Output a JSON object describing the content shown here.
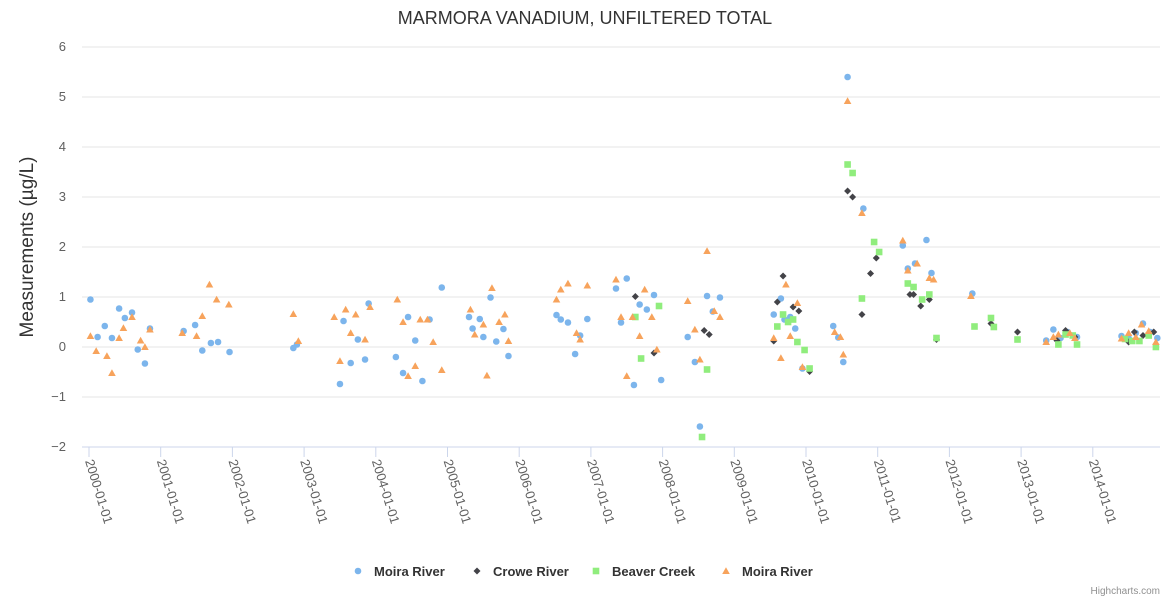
{
  "chart_data": {
    "type": "scatter",
    "title": "MARMORA VANADIUM, UNFILTERED TOTAL",
    "xlabel": "",
    "ylabel": "Measurements (µg/L)",
    "ylim": [
      -2,
      6
    ],
    "yticks": [
      -2,
      -1,
      0,
      1,
      2,
      3,
      4,
      5,
      6
    ],
    "xlim": [
      2000.0,
      2014.95
    ],
    "xticks": [
      {
        "value": 2000,
        "label": "2000-01-01"
      },
      {
        "value": 2001,
        "label": "2001-01-01"
      },
      {
        "value": 2002,
        "label": "2002-01-01"
      },
      {
        "value": 2003,
        "label": "2003-01-01"
      },
      {
        "value": 2004,
        "label": "2004-01-01"
      },
      {
        "value": 2005,
        "label": "2005-01-01"
      },
      {
        "value": 2006,
        "label": "2006-01-01"
      },
      {
        "value": 2007,
        "label": "2007-01-01"
      },
      {
        "value": 2008,
        "label": "2008-01-01"
      },
      {
        "value": 2009,
        "label": "2009-01-01"
      },
      {
        "value": 2010,
        "label": "2010-01-01"
      },
      {
        "value": 2011,
        "label": "2011-01-01"
      },
      {
        "value": 2012,
        "label": "2012-01-01"
      },
      {
        "value": 2013,
        "label": "2013-01-01"
      },
      {
        "value": 2014,
        "label": "2014-01-01"
      }
    ],
    "grid": true,
    "legend": "bottom-center",
    "series": [
      {
        "name": "Moira River",
        "color": "#7cb5ec",
        "marker": "circle",
        "points": [
          [
            2000.02,
            0.95
          ],
          [
            2000.12,
            0.2
          ],
          [
            2000.22,
            0.42
          ],
          [
            2000.32,
            0.18
          ],
          [
            2000.42,
            0.77
          ],
          [
            2000.5,
            0.58
          ],
          [
            2000.6,
            0.69
          ],
          [
            2000.68,
            -0.05
          ],
          [
            2000.78,
            -0.33
          ],
          [
            2000.85,
            0.37
          ],
          [
            2001.32,
            0.32
          ],
          [
            2001.48,
            0.44
          ],
          [
            2001.58,
            -0.07
          ],
          [
            2001.7,
            0.08
          ],
          [
            2001.8,
            0.1
          ],
          [
            2001.96,
            -0.1
          ],
          [
            2002.85,
            -0.02
          ],
          [
            2002.9,
            0.05
          ],
          [
            2003.5,
            -0.74
          ],
          [
            2003.55,
            0.52
          ],
          [
            2003.65,
            -0.32
          ],
          [
            2003.75,
            0.15
          ],
          [
            2003.85,
            -0.25
          ],
          [
            2003.9,
            0.87
          ],
          [
            2004.28,
            -0.2
          ],
          [
            2004.38,
            -0.52
          ],
          [
            2004.45,
            0.6
          ],
          [
            2004.55,
            0.13
          ],
          [
            2004.65,
            -0.68
          ],
          [
            2004.75,
            0.55
          ],
          [
            2004.92,
            1.19
          ],
          [
            2005.3,
            0.6
          ],
          [
            2005.35,
            0.37
          ],
          [
            2005.45,
            0.56
          ],
          [
            2005.5,
            0.2
          ],
          [
            2005.6,
            0.99
          ],
          [
            2005.68,
            0.11
          ],
          [
            2005.78,
            0.36
          ],
          [
            2005.85,
            -0.18
          ],
          [
            2006.52,
            0.64
          ],
          [
            2006.58,
            0.55
          ],
          [
            2006.68,
            0.49
          ],
          [
            2006.78,
            -0.14
          ],
          [
            2006.85,
            0.23
          ],
          [
            2006.95,
            0.56
          ],
          [
            2007.35,
            1.17
          ],
          [
            2007.42,
            0.49
          ],
          [
            2007.5,
            1.37
          ],
          [
            2007.6,
            -0.76
          ],
          [
            2007.68,
            0.85
          ],
          [
            2007.78,
            0.75
          ],
          [
            2007.88,
            1.04
          ],
          [
            2007.98,
            -0.66
          ],
          [
            2008.35,
            0.2
          ],
          [
            2008.45,
            -0.3
          ],
          [
            2008.52,
            -1.59
          ],
          [
            2008.62,
            1.02
          ],
          [
            2008.7,
            0.71
          ],
          [
            2008.8,
            0.99
          ],
          [
            2009.55,
            0.65
          ],
          [
            2009.65,
            0.97
          ],
          [
            2009.7,
            0.55
          ],
          [
            2009.78,
            0.6
          ],
          [
            2009.85,
            0.37
          ],
          [
            2009.95,
            -0.43
          ],
          [
            2010.38,
            0.42
          ],
          [
            2010.45,
            0.19
          ],
          [
            2010.52,
            -0.3
          ],
          [
            2010.58,
            5.4
          ],
          [
            2010.8,
            2.77
          ],
          [
            2011.35,
            2.03
          ],
          [
            2011.42,
            1.57
          ],
          [
            2011.52,
            1.67
          ],
          [
            2011.68,
            2.14
          ],
          [
            2011.75,
            1.48
          ],
          [
            2012.32,
            1.07
          ],
          [
            2013.35,
            0.13
          ],
          [
            2013.45,
            0.35
          ],
          [
            2013.55,
            0.18
          ],
          [
            2013.65,
            0.3
          ],
          [
            2013.78,
            0.2
          ],
          [
            2014.4,
            0.22
          ],
          [
            2014.5,
            0.18
          ],
          [
            2014.6,
            0.28
          ],
          [
            2014.7,
            0.47
          ],
          [
            2014.8,
            0.3
          ],
          [
            2014.9,
            0.18
          ]
        ]
      },
      {
        "name": "Crowe River",
        "color": "#434348",
        "marker": "diamond",
        "points": [
          [
            2007.62,
            1.01
          ],
          [
            2007.88,
            -0.12
          ],
          [
            2008.58,
            0.33
          ],
          [
            2008.65,
            0.25
          ],
          [
            2009.55,
            0.12
          ],
          [
            2009.6,
            0.9
          ],
          [
            2009.68,
            1.42
          ],
          [
            2009.82,
            0.8
          ],
          [
            2009.9,
            0.72
          ],
          [
            2010.05,
            -0.49
          ],
          [
            2010.58,
            3.12
          ],
          [
            2010.65,
            3.0
          ],
          [
            2010.78,
            0.65
          ],
          [
            2010.9,
            1.47
          ],
          [
            2010.98,
            1.78
          ],
          [
            2011.45,
            1.05
          ],
          [
            2011.5,
            1.05
          ],
          [
            2011.6,
            0.82
          ],
          [
            2011.72,
            0.95
          ],
          [
            2011.82,
            0.15
          ],
          [
            2012.58,
            0.47
          ],
          [
            2012.95,
            0.3
          ],
          [
            2013.5,
            0.13
          ],
          [
            2013.62,
            0.33
          ],
          [
            2013.75,
            0.2
          ],
          [
            2014.5,
            0.1
          ],
          [
            2014.58,
            0.3
          ],
          [
            2014.7,
            0.23
          ],
          [
            2014.85,
            0.3
          ]
        ]
      },
      {
        "name": "Beaver Creek",
        "color": "#90ed7d",
        "marker": "square",
        "points": [
          [
            2007.62,
            0.6
          ],
          [
            2007.7,
            -0.23
          ],
          [
            2007.95,
            0.82
          ],
          [
            2008.55,
            -1.8
          ],
          [
            2008.62,
            -0.45
          ],
          [
            2009.6,
            0.41
          ],
          [
            2009.68,
            0.65
          ],
          [
            2009.75,
            0.5
          ],
          [
            2009.82,
            0.55
          ],
          [
            2009.88,
            0.1
          ],
          [
            2009.98,
            -0.06
          ],
          [
            2010.05,
            -0.43
          ],
          [
            2010.58,
            3.65
          ],
          [
            2010.65,
            3.48
          ],
          [
            2010.78,
            0.97
          ],
          [
            2010.95,
            2.1
          ],
          [
            2011.02,
            1.9
          ],
          [
            2011.42,
            1.27
          ],
          [
            2011.5,
            1.2
          ],
          [
            2011.62,
            0.95
          ],
          [
            2011.72,
            1.05
          ],
          [
            2011.82,
            0.18
          ],
          [
            2012.35,
            0.41
          ],
          [
            2012.58,
            0.58
          ],
          [
            2012.62,
            0.4
          ],
          [
            2012.95,
            0.15
          ],
          [
            2013.52,
            0.05
          ],
          [
            2013.62,
            0.25
          ],
          [
            2013.72,
            0.23
          ],
          [
            2013.78,
            0.05
          ],
          [
            2014.45,
            0.16
          ],
          [
            2014.55,
            0.12
          ],
          [
            2014.65,
            0.12
          ],
          [
            2014.78,
            0.23
          ],
          [
            2014.88,
            0.0
          ]
        ]
      },
      {
        "name": "Moira River",
        "color": "#f7a35c",
        "marker": "triangle",
        "points": [
          [
            2000.02,
            0.22
          ],
          [
            2000.1,
            -0.08
          ],
          [
            2000.25,
            -0.18
          ],
          [
            2000.32,
            -0.52
          ],
          [
            2000.42,
            0.18
          ],
          [
            2000.48,
            0.38
          ],
          [
            2000.6,
            0.6
          ],
          [
            2000.72,
            0.13
          ],
          [
            2000.78,
            0.0
          ],
          [
            2000.85,
            0.35
          ],
          [
            2001.3,
            0.28
          ],
          [
            2001.5,
            0.22
          ],
          [
            2001.58,
            0.62
          ],
          [
            2001.68,
            1.25
          ],
          [
            2001.78,
            0.95
          ],
          [
            2001.95,
            0.85
          ],
          [
            2002.85,
            0.66
          ],
          [
            2002.92,
            0.12
          ],
          [
            2003.42,
            0.6
          ],
          [
            2003.5,
            -0.28
          ],
          [
            2003.58,
            0.75
          ],
          [
            2003.65,
            0.28
          ],
          [
            2003.72,
            0.65
          ],
          [
            2003.85,
            0.15
          ],
          [
            2003.92,
            0.8
          ],
          [
            2004.3,
            0.95
          ],
          [
            2004.38,
            0.5
          ],
          [
            2004.45,
            -0.58
          ],
          [
            2004.55,
            -0.38
          ],
          [
            2004.62,
            0.55
          ],
          [
            2004.72,
            0.55
          ],
          [
            2004.8,
            0.1
          ],
          [
            2004.92,
            -0.46
          ],
          [
            2005.32,
            0.75
          ],
          [
            2005.38,
            0.25
          ],
          [
            2005.5,
            0.45
          ],
          [
            2005.55,
            -0.57
          ],
          [
            2005.62,
            1.18
          ],
          [
            2005.72,
            0.5
          ],
          [
            2005.8,
            0.65
          ],
          [
            2005.85,
            0.12
          ],
          [
            2006.52,
            0.95
          ],
          [
            2006.58,
            1.15
          ],
          [
            2006.68,
            1.27
          ],
          [
            2006.8,
            0.28
          ],
          [
            2006.85,
            0.15
          ],
          [
            2006.95,
            1.23
          ],
          [
            2007.35,
            1.35
          ],
          [
            2007.42,
            0.6
          ],
          [
            2007.5,
            -0.58
          ],
          [
            2007.58,
            0.6
          ],
          [
            2007.68,
            0.22
          ],
          [
            2007.75,
            1.15
          ],
          [
            2007.85,
            0.6
          ],
          [
            2007.92,
            -0.05
          ],
          [
            2008.35,
            0.92
          ],
          [
            2008.45,
            0.35
          ],
          [
            2008.52,
            -0.25
          ],
          [
            2008.62,
            1.92
          ],
          [
            2008.72,
            0.72
          ],
          [
            2008.8,
            0.6
          ],
          [
            2009.55,
            0.18
          ],
          [
            2009.65,
            -0.22
          ],
          [
            2009.72,
            1.25
          ],
          [
            2009.78,
            0.22
          ],
          [
            2009.88,
            0.88
          ],
          [
            2009.95,
            -0.4
          ],
          [
            2010.4,
            0.3
          ],
          [
            2010.48,
            0.2
          ],
          [
            2010.52,
            -0.15
          ],
          [
            2010.58,
            4.92
          ],
          [
            2010.78,
            2.68
          ],
          [
            2011.35,
            2.13
          ],
          [
            2011.42,
            1.53
          ],
          [
            2011.55,
            1.67
          ],
          [
            2011.72,
            1.38
          ],
          [
            2011.78,
            1.35
          ],
          [
            2012.3,
            1.02
          ],
          [
            2013.35,
            0.1
          ],
          [
            2013.45,
            0.2
          ],
          [
            2013.52,
            0.25
          ],
          [
            2013.68,
            0.28
          ],
          [
            2013.75,
            0.18
          ],
          [
            2014.4,
            0.17
          ],
          [
            2014.5,
            0.28
          ],
          [
            2014.6,
            0.2
          ],
          [
            2014.68,
            0.45
          ],
          [
            2014.78,
            0.32
          ],
          [
            2014.88,
            0.1
          ]
        ]
      }
    ]
  },
  "credits": "Highcharts.com"
}
